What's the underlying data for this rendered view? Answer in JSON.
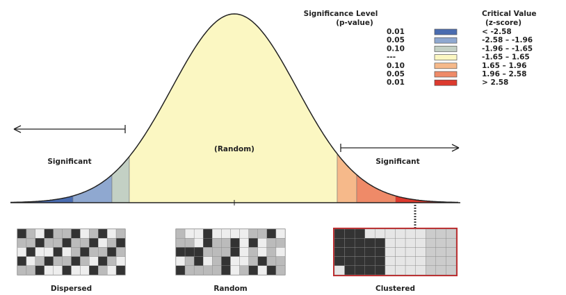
{
  "legend": {
    "p_header": [
      "Significance Level",
      "(p-value)"
    ],
    "z_header": [
      "Critical Value",
      "(z-score)"
    ],
    "rows": [
      {
        "p": "0.01",
        "color": "#4a6cb0",
        "z": "< -2.58"
      },
      {
        "p": "0.05",
        "color": "#8fa8d0",
        "z": "-2.58 – -1.96"
      },
      {
        "p": "0.10",
        "color": "#c3d0c4",
        "z": "-1.96 – -1.65"
      },
      {
        "p": "---",
        "color": "#fbf7c2",
        "z": "-1.65 – 1.65"
      },
      {
        "p": "0.10",
        "color": "#f6b98a",
        "z": "1.65 – 1.96"
      },
      {
        "p": "0.05",
        "color": "#ef8a68",
        "z": "1.96 – 2.58"
      },
      {
        "p": "0.01",
        "color": "#dc3a2e",
        "z": "> 2.58"
      }
    ]
  },
  "curve": {
    "left_label": "Significant",
    "center_label": "(Random)",
    "right_label": "Significant"
  },
  "patterns": [
    "Dispersed",
    "Random",
    "Clustered"
  ]
}
